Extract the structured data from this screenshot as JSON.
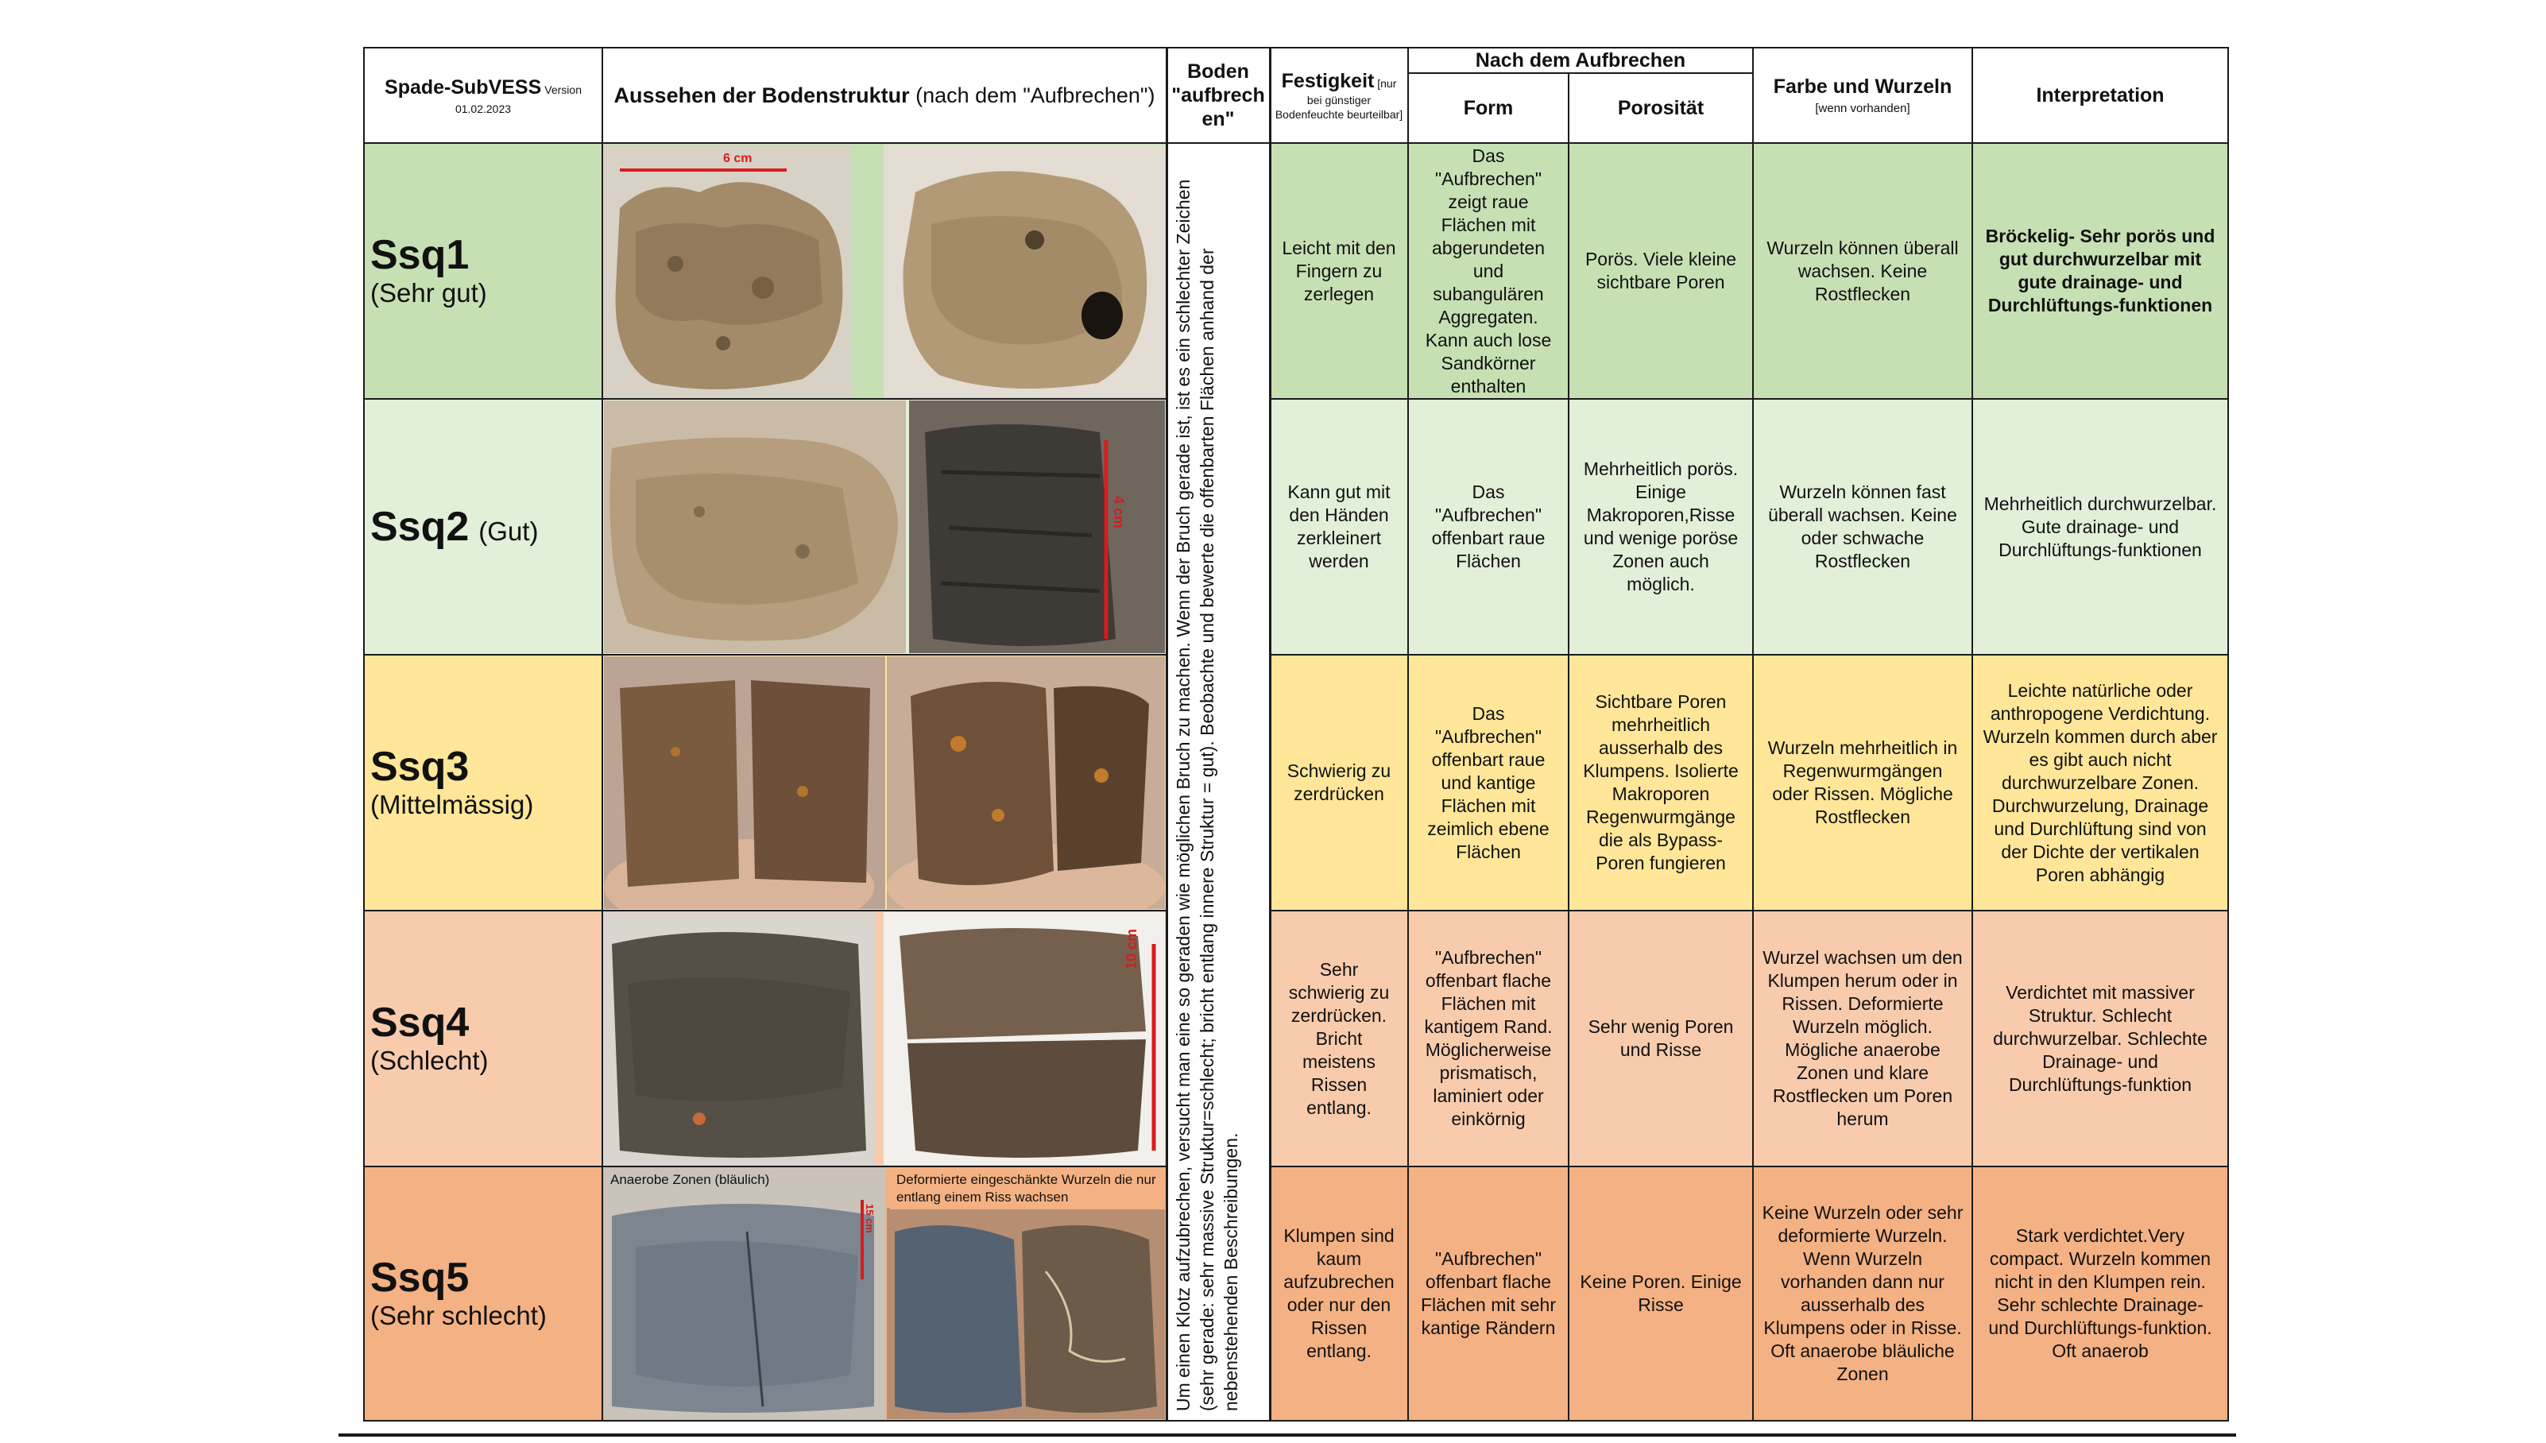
{
  "header": {
    "title_main": "Spade-SubVESS",
    "title_version_word": "Version",
    "title_date": "01.02.2023",
    "col_structure_bold": "Aussehen der Bodenstruktur",
    "col_structure_rest": " (nach dem \"Aufbrechen\")",
    "col_boden_line1": "Boden",
    "col_boden_line2": "\"aufbrech",
    "col_boden_line3": "en\"",
    "col_festigkeit_bold": "Festigkeit",
    "col_festigkeit_note": " [nur bei günstiger Bodenfeuchte beurteilbar]",
    "group_nach": "Nach dem Aufbrechen",
    "col_form": "Form",
    "col_porositaet": "Porosität",
    "col_farbe": "Farbe und Wurzeln",
    "col_farbe_note": "[wenn vorhanden]",
    "col_interpretation": "Interpretation"
  },
  "vertical_note": "Um einen Klotz aufzubrechen, versucht man eine so geraden wie möglichen Bruch zu machen. Wenn der Bruch gerade ist, ist es ein schlechter Zeichen (sehr gerade: sehr massive Struktur=schlecht; bricht entlang innere Struktur = gut). Beobachte und bewerte die offenbarten Flächen anhand der nebenstehenden Beschreibungen.",
  "rows": [
    {
      "code": "Ssq1",
      "quality": "(Sehr gut)",
      "bg": "#c6e0b4",
      "festigkeit": "Leicht mit den Fingern zu zerlegen",
      "form": "Das \"Aufbrechen\" zeigt raue Flächen mit abgerundeten und subangulären Aggregaten. Kann auch lose Sandkörner enthalten",
      "porositaet": "Porös. Viele kleine sichtbare Poren",
      "farbe": "Wurzeln können überall wachsen. Keine Rostflecken",
      "interpretation": "Bröckelig- Sehr porös und gut durchwurzelbar mit gute drainage- und Durchlüftungs-funktionen"
    },
    {
      "code": "Ssq2",
      "quality": "(Gut)",
      "bg": "#e2efd9",
      "festigkeit": "Kann gut mit den Händen zerkleinert werden",
      "form": "Das \"Aufbrechen\" offenbart raue Flächen",
      "porositaet": "Mehrheitlich porös. Einige Makroporen,Risse und wenige poröse Zonen auch möglich.",
      "farbe": "Wurzeln können fast überall wachsen. Keine oder schwache Rostflecken",
      "interpretation": "Mehrheitlich durchwurzelbar. Gute drainage- und Durchlüftungs-funktionen"
    },
    {
      "code": "Ssq3",
      "quality": "(Mittelmässig)",
      "bg": "#ffe699",
      "festigkeit": "Schwierig zu zerdrücken",
      "form": "Das \"Aufbrechen\" offenbart raue und kantige Flächen mit zeimlich ebene Flächen",
      "porositaet": "Sichtbare Poren mehrheitlich ausserhalb des Klumpens. Isolierte Makroporen Regenwurmgänge die als Bypass-Poren fungieren",
      "farbe": "Wurzeln mehrheitlich in Regenwurmgängen oder Rissen. Mögliche Rostflecken",
      "interpretation": "Leichte natürliche oder anthropogene Verdichtung. Wurzeln kommen durch aber es gibt auch nicht durchwurzelbare Zonen. Durchwurzelung, Drainage und Durchlüftung sind von der Dichte der vertikalen Poren abhängig"
    },
    {
      "code": "Ssq4",
      "quality": "(Schlecht)",
      "bg": "#f8cbad",
      "festigkeit": "Sehr schwierig zu zerdrücken. Bricht meistens Rissen entlang.",
      "form": "\"Aufbrechen\" offenbart flache Flächen mit kantigem Rand. Möglicherweise prismatisch, laminiert oder einkörnig",
      "porositaet": "Sehr wenig Poren und Risse",
      "farbe": "Wurzel wachsen um den Klumpen herum oder in Rissen. Deformierte Wurzeln möglich. Mögliche anaerobe Zonen und klare Rostflecken um Poren herum",
      "interpretation": "Verdichtet mit massiver Struktur. Schlecht durchwurzelbar. Schlechte Drainage- und Durchlüftungs-funktion"
    },
    {
      "code": "Ssq5",
      "quality": "(Sehr schlecht)",
      "bg": "#f4b183",
      "festigkeit": "Klumpen sind kaum aufzubrechen oder nur den Rissen entlang.",
      "form": "\"Aufbrechen\" offenbart flache Flächen mit sehr kantige Rändern",
      "porositaet": "Keine Poren. Einige Risse",
      "farbe": "Keine Wurzeln oder sehr deformierte Wurzeln. Wenn Wurzeln vorhanden dann nur ausserhalb des Klumpens oder in Risse. Oft anaerobe bläuliche Zonen",
      "interpretation": "Stark verdichtet.Very compact. Wurzeln kommen nicht in den Klumpen rein. Sehr schlechte Drainage- und Durchlüftungs-funktion. Oft anaerob"
    }
  ],
  "photo_labels": {
    "scale_6cm": "6 cm",
    "scale_4cm": "4 cm",
    "scale_10cm": "10 cm",
    "scale_15cm": "15 cm",
    "caption_anaerob": "Anaerobe Zonen (bläulich)",
    "caption_deformiert": "Deformierte eingeschänkte Wurzeln die nur entlang einem Riss wachsen"
  }
}
